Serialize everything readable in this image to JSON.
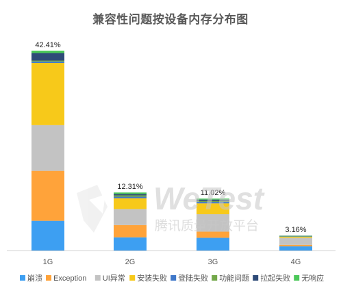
{
  "chart_data": {
    "type": "bar",
    "stacked": true,
    "title": "兼容性问题按设备内存分布图",
    "categories": [
      "1G",
      "2G",
      "3G",
      "4G"
    ],
    "totals": [
      42.41,
      12.31,
      11.02,
      3.16
    ],
    "total_labels": [
      "42.41%",
      "12.31%",
      "11.02%",
      "3.16%"
    ],
    "ylim": [
      0,
      45
    ],
    "grid": false,
    "legend_position": "bottom",
    "series": [
      {
        "name": "崩溃",
        "color": "#3d9ff2",
        "values": [
          6.3,
          2.8,
          2.7,
          0.9
        ]
      },
      {
        "name": "Exception",
        "color": "#ffa33a",
        "values": [
          10.6,
          2.6,
          1.3,
          0.3
        ]
      },
      {
        "name": "UI异常",
        "color": "#c3c3c3",
        "values": [
          9.7,
          3.4,
          3.7,
          1.5
        ]
      },
      {
        "name": "安装失败",
        "color": "#f7c91a",
        "values": [
          13.2,
          2.3,
          2.3,
          0.2
        ]
      },
      {
        "name": "登陆失败",
        "color": "#3f78c9",
        "values": [
          0.3,
          0.3,
          0.3,
          0.06
        ]
      },
      {
        "name": "功能问题",
        "color": "#73a84a",
        "values": [
          0.2,
          0.3,
          0.2,
          0.1
        ]
      },
      {
        "name": "拉起失败",
        "color": "#2e4b78",
        "values": [
          1.6,
          0.3,
          0.3,
          0.05
        ]
      },
      {
        "name": "无响应",
        "color": "#4cc85a",
        "values": [
          0.51,
          0.31,
          0.22,
          0.05
        ]
      }
    ]
  },
  "watermark": {
    "brand": "WeTest",
    "subtitle": "腾讯质量开放平台"
  }
}
